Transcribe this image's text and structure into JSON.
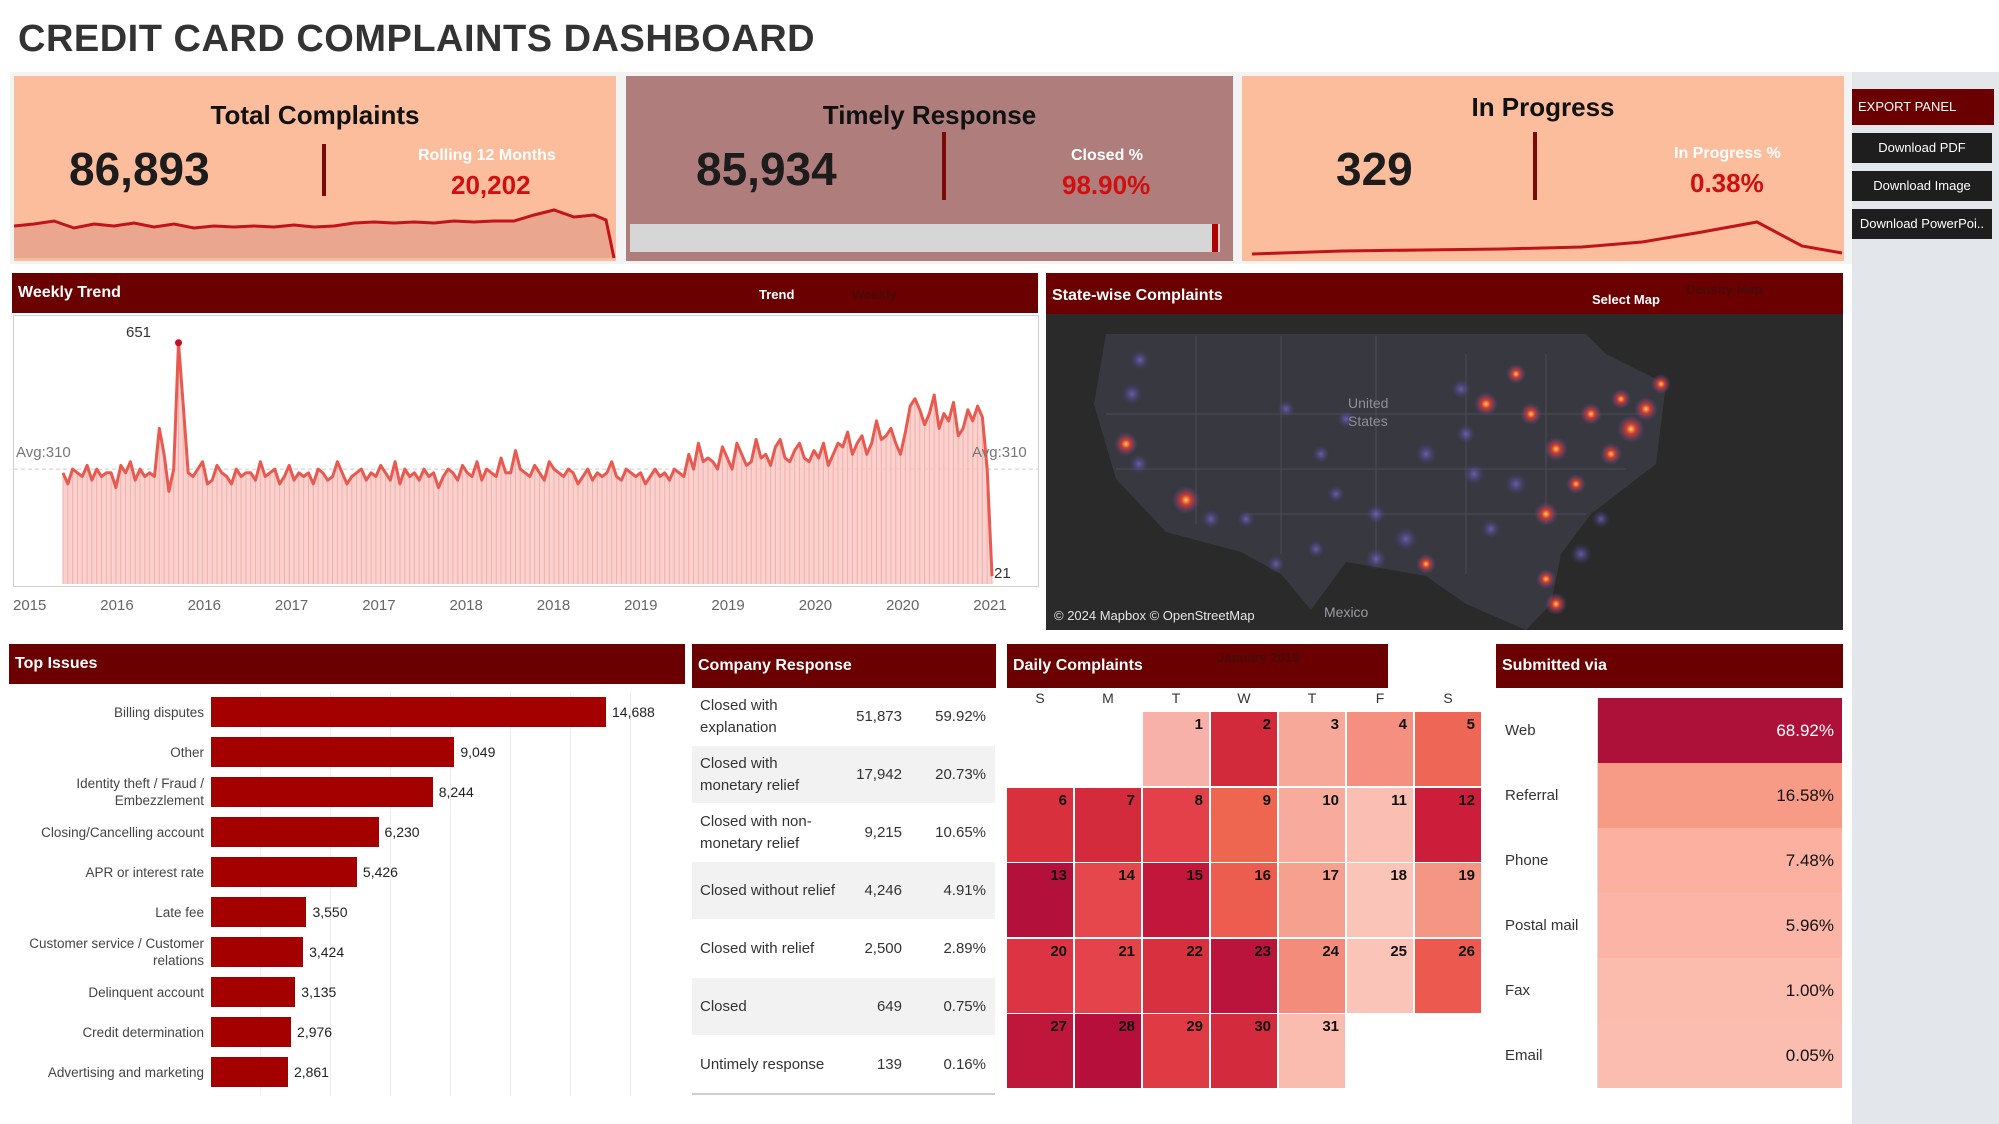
{
  "title": "CREDIT CARD COMPLAINTS DASHBOARD",
  "kpi": {
    "total": {
      "title": "Total Complaints",
      "value": "86,893",
      "sub_label": "Rolling 12 Months",
      "sub_value": "20,202"
    },
    "timely": {
      "title": "Timely Response",
      "value": "85,934",
      "sub_label": "Closed %",
      "sub_value": "98.90%"
    },
    "progress": {
      "title": "In Progress",
      "value": "329",
      "sub_label": "In Progress %",
      "sub_value": "0.38%"
    }
  },
  "export_panel": {
    "header": "EXPORT PANEL",
    "pdf": "Download PDF",
    "image": "Download Image",
    "ppt": "Download PowerPoi.."
  },
  "weekly": {
    "header": "Weekly Trend",
    "toggle_active": "Trend",
    "toggle_inactive": "Weekly",
    "peak_label": "651",
    "avg_left": "Avg:310",
    "avg_right": "Avg:310",
    "end_label": "21"
  },
  "map": {
    "header": "State-wise Complaints",
    "select_label": "Select Map",
    "select_ghost": "Density Map",
    "country": "United States",
    "mexico": "Mexico",
    "credit": "© 2024 Mapbox © OpenStreetMap"
  },
  "top_issues": {
    "header": "Top Issues",
    "items": [
      {
        "label": "Billing disputes",
        "value": "14,688",
        "n": 14688
      },
      {
        "label": "Other",
        "value": "9,049",
        "n": 9049
      },
      {
        "label": "Identity theft / Fraud / Embezzlement",
        "value": "8,244",
        "n": 8244
      },
      {
        "label": "Closing/Cancelling account",
        "value": "6,230",
        "n": 6230
      },
      {
        "label": "APR or interest rate",
        "value": "5,426",
        "n": 5426
      },
      {
        "label": "Late fee",
        "value": "3,550",
        "n": 3550
      },
      {
        "label": "Customer service / Customer relations",
        "value": "3,424",
        "n": 3424
      },
      {
        "label": "Delinquent account",
        "value": "3,135",
        "n": 3135
      },
      {
        "label": "Credit determination",
        "value": "2,976",
        "n": 2976
      },
      {
        "label": "Advertising and marketing",
        "value": "2,861",
        "n": 2861
      }
    ]
  },
  "company_response": {
    "header": "Company Response",
    "rows": [
      {
        "label": "Closed with explanation",
        "count": "51,873",
        "pct": "59.92%"
      },
      {
        "label": "Closed with monetary relief",
        "count": "17,942",
        "pct": "20.73%"
      },
      {
        "label": "Closed with non-monetary relief",
        "count": "9,215",
        "pct": "10.65%"
      },
      {
        "label": "Closed without relief",
        "count": "4,246",
        "pct": "4.91%"
      },
      {
        "label": "Closed with relief",
        "count": "2,500",
        "pct": "2.89%"
      },
      {
        "label": "Closed",
        "count": "649",
        "pct": "0.75%"
      },
      {
        "label": "Untimely response",
        "count": "139",
        "pct": "0.16%"
      }
    ]
  },
  "daily": {
    "header": "Daily Complaints",
    "month_ghost": "January 2019",
    "dow": [
      "S",
      "M",
      "T",
      "W",
      "T",
      "F",
      "S"
    ],
    "days": [
      {
        "d": "1",
        "c": "#f7b1a8"
      },
      {
        "d": "2",
        "c": "#d32a3b"
      },
      {
        "d": "3",
        "c": "#f8a898"
      },
      {
        "d": "4",
        "c": "#f58f80"
      },
      {
        "d": "5",
        "c": "#ee6655"
      },
      {
        "d": "6",
        "c": "#d9303e"
      },
      {
        "d": "7",
        "c": "#d42b3c"
      },
      {
        "d": "8",
        "c": "#e4404a"
      },
      {
        "d": "9",
        "c": "#ef6650"
      },
      {
        "d": "10",
        "c": "#f8aa9c"
      },
      {
        "d": "11",
        "c": "#fbbeb2"
      },
      {
        "d": "12",
        "c": "#cc1e3a"
      },
      {
        "d": "13",
        "c": "#b3103c"
      },
      {
        "d": "14",
        "c": "#e6474c"
      },
      {
        "d": "15",
        "c": "#c3163b"
      },
      {
        "d": "16",
        "c": "#ec5d50"
      },
      {
        "d": "17",
        "c": "#f6a090"
      },
      {
        "d": "18",
        "c": "#fbc4b8"
      },
      {
        "d": "19",
        "c": "#f59584"
      },
      {
        "d": "20",
        "c": "#dc3442"
      },
      {
        "d": "21",
        "c": "#e5434b"
      },
      {
        "d": "22",
        "c": "#d9303f"
      },
      {
        "d": "23",
        "c": "#bb143c"
      },
      {
        "d": "24",
        "c": "#f48c7b"
      },
      {
        "d": "25",
        "c": "#fbc4b9"
      },
      {
        "d": "26",
        "c": "#ec5a4f"
      },
      {
        "d": "27",
        "c": "#bf163c"
      },
      {
        "d": "28",
        "c": "#b60f3b"
      },
      {
        "d": "29",
        "c": "#e03b45"
      },
      {
        "d": "30",
        "c": "#d32b3d"
      },
      {
        "d": "31",
        "c": "#fbbcb0"
      }
    ]
  },
  "submitted": {
    "header": "Submitted via",
    "rows": [
      {
        "label": "Web",
        "pct": "68.92%",
        "c": "#ad1038"
      },
      {
        "label": "Referral",
        "pct": "16.58%",
        "c": "#f79a86"
      },
      {
        "label": "Phone",
        "pct": "7.48%",
        "c": "#fbb0a0"
      },
      {
        "label": "Postal mail",
        "pct": "5.96%",
        "c": "#fbb4a5"
      },
      {
        "label": "Fax",
        "pct": "1.00%",
        "c": "#fbbcae"
      },
      {
        "label": "Email",
        "pct": "0.05%",
        "c": "#fbbdaf"
      }
    ]
  },
  "chart_data": {
    "type": "area",
    "x_tick_labels": [
      "2015",
      "2016",
      "2016",
      "2017",
      "2017",
      "2018",
      "2018",
      "2019",
      "2019",
      "2020",
      "2020",
      "2021"
    ],
    "reference_line": 310,
    "annotations": [
      {
        "label": "651",
        "value": 651
      },
      {
        "label": "21",
        "value": 21
      }
    ],
    "series": [
      {
        "values": [
          300,
          270,
          310,
          300,
          290,
          320,
          280,
          310,
          290,
          300,
          300,
          260,
          320,
          300,
          330,
          280,
          310,
          290,
          300,
          290,
          420,
          350,
          250,
          310,
          651,
          480,
          300,
          290,
          310,
          330,
          270,
          280,
          320,
          300,
          290,
          270,
          310,
          290,
          300,
          300,
          280,
          330,
          290,
          300,
          310,
          270,
          290,
          320,
          280,
          300,
          290,
          300,
          270,
          310,
          300,
          280,
          290,
          330,
          300,
          270,
          290,
          300,
          310,
          280,
          300,
          290,
          320,
          300,
          280,
          330,
          270,
          310,
          290,
          300,
          280,
          310,
          290,
          300,
          260,
          290,
          310,
          300,
          280,
          320,
          300,
          290,
          330,
          280,
          310,
          300,
          290,
          340,
          300,
          300,
          360,
          310,
          300,
          290,
          320,
          300,
          280,
          330,
          310,
          300,
          290,
          310,
          300,
          270,
          290,
          310,
          280,
          300,
          290,
          300,
          330,
          290,
          280,
          310,
          300,
          290,
          300,
          270,
          290,
          310,
          290,
          300,
          280,
          310,
          300,
          290,
          350,
          310,
          380,
          330,
          340,
          330,
          310,
          370,
          340,
          310,
          380,
          350,
          320,
          330,
          390,
          340,
          350,
          320,
          370,
          390,
          340,
          330,
          360,
          380,
          340,
          330,
          360,
          340,
          380,
          320,
          350,
          380,
          370,
          410,
          350,
          380,
          400,
          350,
          380,
          440,
          390,
          400,
          420,
          380,
          350,
          410,
          480,
          500,
          470,
          430,
          460,
          510,
          420,
          460,
          440,
          490,
          400,
          420,
          470,
          440,
          480,
          450,
          310,
          21
        ]
      }
    ]
  }
}
